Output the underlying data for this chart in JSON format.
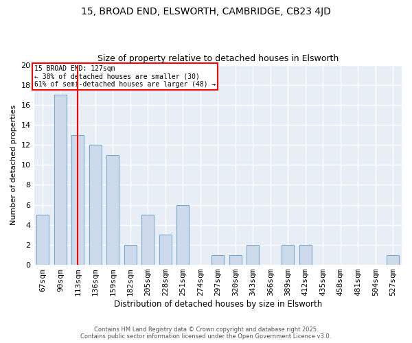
{
  "title_line1": "15, BROAD END, ELSWORTH, CAMBRIDGE, CB23 4JD",
  "title_line2": "Size of property relative to detached houses in Elsworth",
  "xlabel": "Distribution of detached houses by size in Elsworth",
  "ylabel": "Number of detached properties",
  "categories": [
    "67sqm",
    "90sqm",
    "113sqm",
    "136sqm",
    "159sqm",
    "182sqm",
    "205sqm",
    "228sqm",
    "251sqm",
    "274sqm",
    "297sqm",
    "320sqm",
    "343sqm",
    "366sqm",
    "389sqm",
    "412sqm",
    "435sqm",
    "458sqm",
    "481sqm",
    "504sqm",
    "527sqm"
  ],
  "values": [
    5,
    17,
    13,
    12,
    11,
    2,
    5,
    3,
    6,
    0,
    1,
    1,
    2,
    0,
    2,
    2,
    0,
    0,
    0,
    0,
    1
  ],
  "bar_color": "#ccdaeb",
  "bar_edge_color": "#7aaac8",
  "red_line_x": 2.0,
  "annotation_text": "15 BROAD END: 127sqm\n← 38% of detached houses are smaller (30)\n61% of semi-detached houses are larger (48) →",
  "annotation_box_color": "white",
  "annotation_box_edge": "red",
  "ylim": [
    0,
    20
  ],
  "yticks": [
    0,
    2,
    4,
    6,
    8,
    10,
    12,
    14,
    16,
    18,
    20
  ],
  "background_color": "#e8eef5",
  "grid_color": "white",
  "bar_width": 0.7,
  "footer_line1": "Contains HM Land Registry data © Crown copyright and database right 2025.",
  "footer_line2": "Contains public sector information licensed under the Open Government Licence v3.0."
}
